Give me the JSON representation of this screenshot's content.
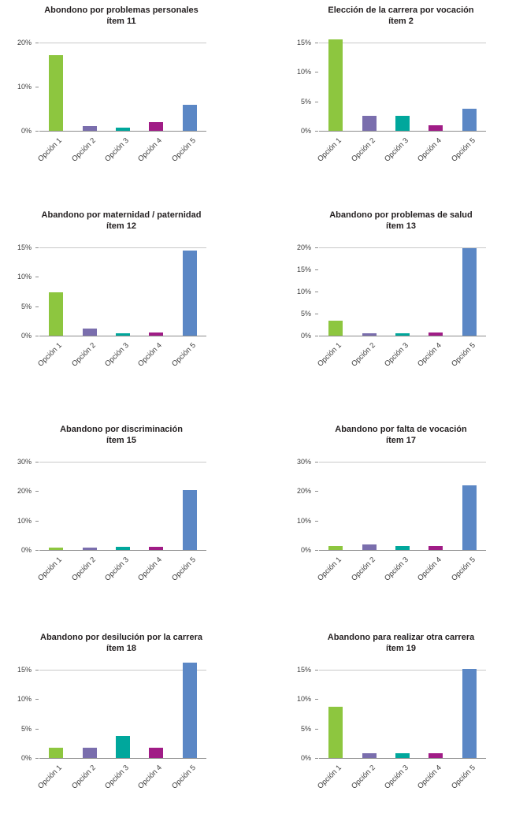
{
  "page": {
    "background": "#ffffff"
  },
  "categories": [
    "Opción 1",
    "Opción 2",
    "Opción 3",
    "Opción 4",
    "Opción 5"
  ],
  "option_colors": [
    "#8dc63f",
    "#7a6ead",
    "#00a79c",
    "#a01c86",
    "#5b87c5"
  ],
  "chart_data": [
    {
      "type": "bar",
      "title": "Abondono por problemas personales",
      "subtitle": "ítem 11",
      "categories": [
        "Opción 1",
        "Opción 2",
        "Opción 3",
        "Opción 4",
        "Opción 5"
      ],
      "values": [
        17.2,
        1.0,
        0.7,
        2.0,
        5.9
      ],
      "yticks": [
        0,
        10,
        20
      ],
      "ytick_labels": [
        "0%",
        "10%",
        "20%"
      ],
      "ylim": [
        0,
        20
      ],
      "grid": "top line and baseline only",
      "legend": "none"
    },
    {
      "type": "bar",
      "title": "Elección de la carrera por vocación",
      "subtitle": "ítem 2",
      "categories": [
        "Opción 1",
        "Opción 2",
        "Opción 3",
        "Opción 4",
        "Opción 5"
      ],
      "values": [
        15.6,
        2.5,
        2.5,
        1.0,
        3.8
      ],
      "yticks": [
        0,
        5,
        10,
        15
      ],
      "ytick_labels": [
        "0%",
        "5%",
        "10%",
        "15%"
      ],
      "ylim": [
        0,
        15
      ],
      "grid": "top line and baseline only",
      "legend": "none"
    },
    {
      "type": "bar",
      "title": "Abandono por maternidad / paternidad",
      "subtitle": "ítem 12",
      "categories": [
        "Opción 1",
        "Opción 2",
        "Opción 3",
        "Opción 4",
        "Opción 5"
      ],
      "values": [
        7.4,
        1.2,
        0.4,
        0.5,
        14.5
      ],
      "yticks": [
        0,
        5,
        10,
        15
      ],
      "ytick_labels": [
        "0%",
        "5%",
        "10%",
        "15%"
      ],
      "ylim": [
        0,
        15
      ],
      "grid": "top line and baseline only",
      "legend": "none"
    },
    {
      "type": "bar",
      "title": "Abandono por problemas de salud",
      "subtitle": "ítem 13",
      "categories": [
        "Opción 1",
        "Opción 2",
        "Opción 3",
        "Opción 4",
        "Opción 5"
      ],
      "values": [
        3.4,
        0.6,
        0.6,
        0.7,
        19.9
      ],
      "yticks": [
        0,
        5,
        10,
        15,
        20
      ],
      "ytick_labels": [
        "0%",
        "5%",
        "10%",
        "15%",
        "20%"
      ],
      "ylim": [
        0,
        20
      ],
      "grid": "top line and baseline only",
      "legend": "none"
    },
    {
      "type": "bar",
      "title": "Abandono por discriminación",
      "subtitle": "ítem 15",
      "categories": [
        "Opción 1",
        "Opción 2",
        "Opción 3",
        "Opción 4",
        "Opción 5"
      ],
      "values": [
        0.8,
        0.8,
        1.0,
        1.0,
        20.4
      ],
      "yticks": [
        0,
        10,
        20,
        30
      ],
      "ytick_labels": [
        "0%",
        "10%",
        "20%",
        "30%"
      ],
      "ylim": [
        0,
        30
      ],
      "grid": "top line and baseline only",
      "legend": "none"
    },
    {
      "type": "bar",
      "title": "Abandono por falta de vocación",
      "subtitle": "ítem 17",
      "categories": [
        "Opción 1",
        "Opción 2",
        "Opción 3",
        "Opción 4",
        "Opción 5"
      ],
      "values": [
        1.3,
        2.0,
        1.3,
        1.3,
        21.9
      ],
      "yticks": [
        0,
        10,
        20,
        30
      ],
      "ytick_labels": [
        "0%",
        "10%",
        "20%",
        "30%"
      ],
      "ylim": [
        0,
        30
      ],
      "grid": "top line and baseline only",
      "legend": "none"
    },
    {
      "type": "bar",
      "title": "Abandono por desilución por la carrera",
      "subtitle": "ítem 18",
      "categories": [
        "Opción 1",
        "Opción 2",
        "Opción 3",
        "Opción 4",
        "Opción 5"
      ],
      "values": [
        1.8,
        1.8,
        3.8,
        1.8,
        16.2
      ],
      "yticks": [
        0,
        5,
        10,
        15
      ],
      "ytick_labels": [
        "0%",
        "5%",
        "10%",
        "15%"
      ],
      "ylim": [
        0,
        15
      ],
      "grid": "top line and baseline only",
      "legend": "none"
    },
    {
      "type": "bar",
      "title": "Abandono para realizar otra carrera",
      "subtitle": "ítem 19",
      "categories": [
        "Opción 1",
        "Opción 2",
        "Opción 3",
        "Opción 4",
        "Opción 5"
      ],
      "values": [
        8.7,
        0.8,
        0.8,
        0.8,
        15.2
      ],
      "yticks": [
        0,
        5,
        10,
        15
      ],
      "ytick_labels": [
        "0%",
        "5%",
        "10%",
        "15%"
      ],
      "ylim": [
        0,
        15
      ],
      "grid": "top line and baseline only",
      "legend": "none"
    }
  ]
}
